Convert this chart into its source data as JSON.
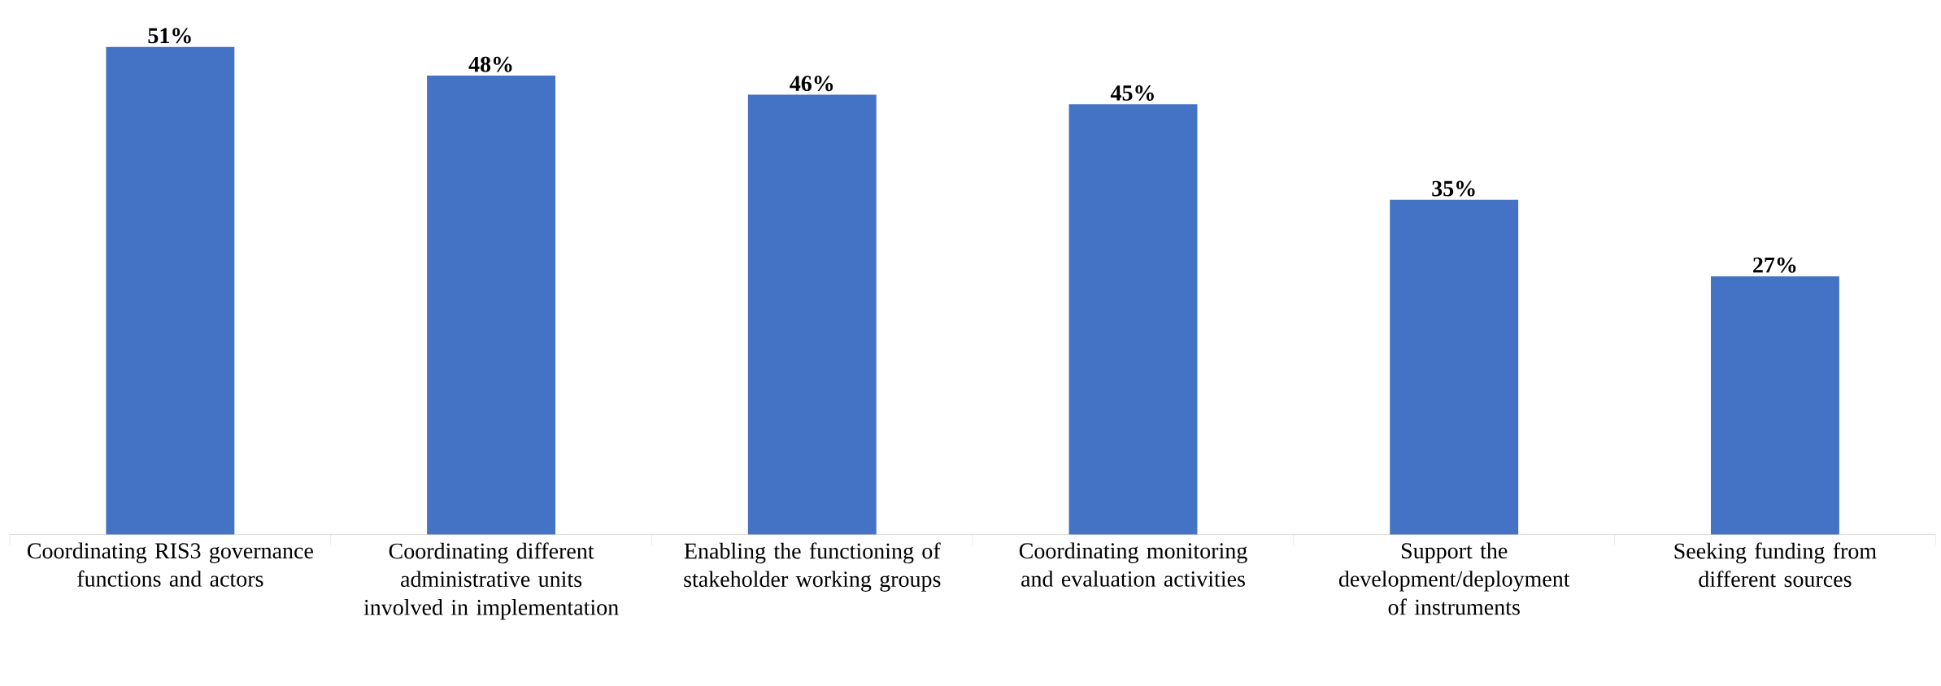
{
  "chart_data": {
    "type": "bar",
    "categories": [
      "Coordinating RIS3 governance functions and actors",
      "Coordinating different administrative units involved in implementation",
      "Enabling the functioning of stakeholder working groups",
      "Coordinating monitoring and evaluation activities",
      "Support the development/deployment of instruments",
      "Seeking funding from different sources"
    ],
    "values": [
      51,
      48,
      46,
      45,
      35,
      27
    ],
    "value_labels": [
      "51%",
      "48%",
      "46%",
      "45%",
      "35%",
      "27%"
    ],
    "color": "#4472c4"
  }
}
